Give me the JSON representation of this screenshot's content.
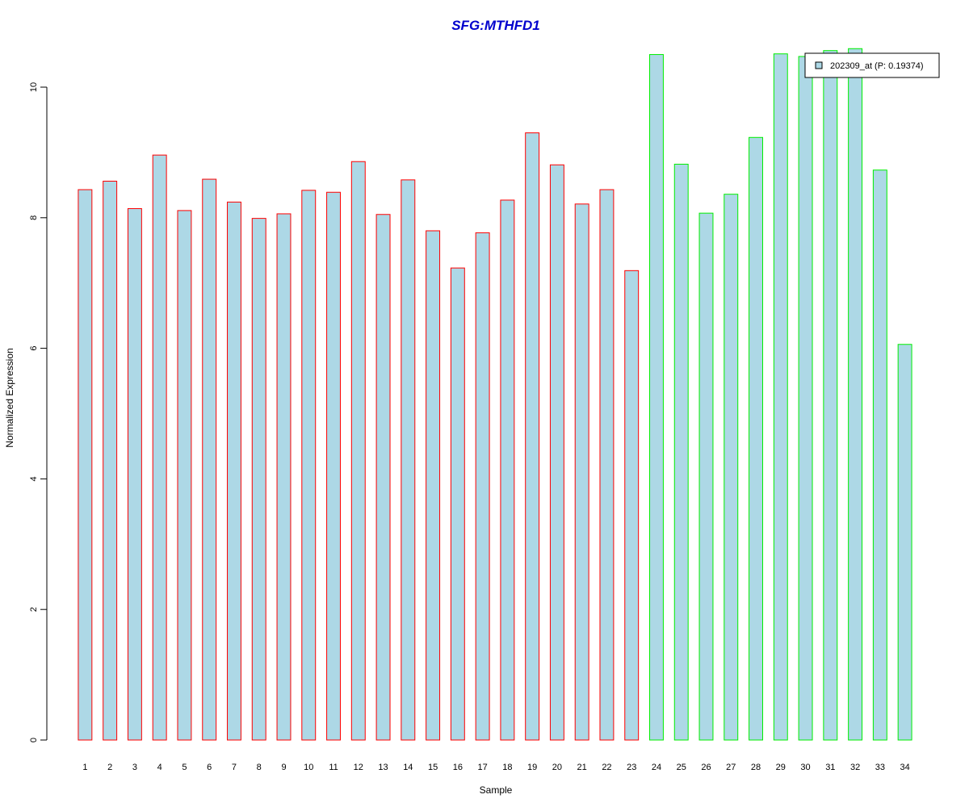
{
  "chart_data": {
    "type": "bar",
    "title": "SFG:MTHFD1",
    "xlabel": "Sample",
    "ylabel": "Normalized Expression",
    "ylim": [
      0,
      10.5
    ],
    "yticks": [
      "0",
      "2",
      "4",
      "6",
      "8",
      "10"
    ],
    "categories": [
      "1",
      "2",
      "3",
      "4",
      "5",
      "6",
      "7",
      "8",
      "9",
      "10",
      "11",
      "12",
      "13",
      "14",
      "15",
      "16",
      "17",
      "18",
      "19",
      "20",
      "21",
      "22",
      "23",
      "24",
      "25",
      "26",
      "27",
      "28",
      "29",
      "30",
      "31",
      "32",
      "33",
      "34"
    ],
    "values": [
      8.43,
      8.56,
      8.14,
      8.96,
      8.11,
      8.59,
      8.24,
      7.99,
      8.06,
      8.42,
      8.39,
      8.86,
      8.05,
      8.58,
      7.8,
      7.23,
      7.77,
      8.27,
      9.3,
      8.81,
      8.21,
      8.43,
      7.19,
      10.5,
      8.82,
      8.07,
      8.36,
      9.23,
      10.51,
      10.47,
      10.56,
      10.59,
      8.73,
      6.06
    ],
    "group_colors": [
      "#ff0000",
      "#ff0000",
      "#ff0000",
      "#ff0000",
      "#ff0000",
      "#ff0000",
      "#ff0000",
      "#ff0000",
      "#ff0000",
      "#ff0000",
      "#ff0000",
      "#ff0000",
      "#ff0000",
      "#ff0000",
      "#ff0000",
      "#ff0000",
      "#ff0000",
      "#ff0000",
      "#ff0000",
      "#ff0000",
      "#ff0000",
      "#ff0000",
      "#ff0000",
      "#00ee00",
      "#00ee00",
      "#00ee00",
      "#00ee00",
      "#00ee00",
      "#00ee00",
      "#00ee00",
      "#00ee00",
      "#00ee00",
      "#00ee00",
      "#00ee00"
    ],
    "bar_fill": "#add8e6",
    "series": [
      {
        "name": "202309_at (P: 0.19374)",
        "values": [
          8.43,
          8.56,
          8.14,
          8.96,
          8.11,
          8.59,
          8.24,
          7.99,
          8.06,
          8.42,
          8.39,
          8.86,
          8.05,
          8.58,
          7.8,
          7.23,
          7.77,
          8.27,
          9.3,
          8.81,
          8.21,
          8.43,
          7.19,
          10.5,
          8.82,
          8.07,
          8.36,
          9.23,
          10.51,
          10.47,
          10.56,
          10.59,
          8.73,
          6.06
        ]
      }
    ],
    "legend": {
      "label": "202309_at (P: 0.19374)",
      "position": "top-right"
    },
    "grid": false
  }
}
